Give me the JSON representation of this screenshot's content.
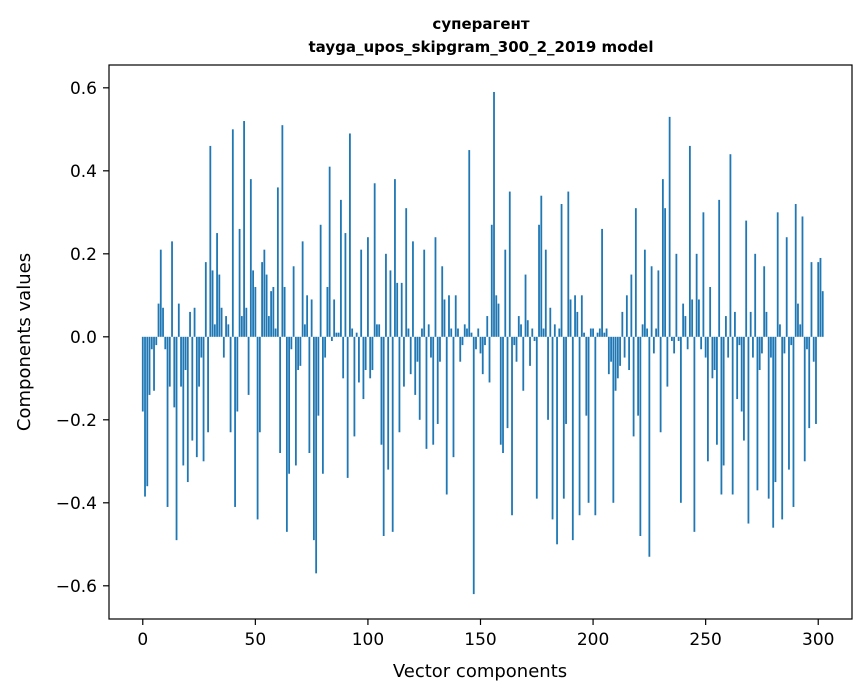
{
  "chart_data": {
    "type": "bar",
    "title": "суперагент",
    "subtitle": "tayga_upos_skipgram_300_2_2019 model",
    "xlabel": "Vector components",
    "ylabel": "Components values",
    "xlim": [
      -15,
      315
    ],
    "ylim": [
      -0.68,
      0.655
    ],
    "xticks": [
      0,
      50,
      100,
      150,
      200,
      250,
      300
    ],
    "xtick_labels": [
      "0",
      "50",
      "100",
      "150",
      "200",
      "250",
      "300"
    ],
    "yticks": [
      -0.6,
      -0.4,
      -0.2,
      0.0,
      0.2,
      0.4,
      0.6
    ],
    "ytick_labels": [
      "−0.6",
      "−0.4",
      "−0.2",
      "0.0",
      "0.2",
      "0.4",
      "0.6"
    ],
    "bar_color": "#1f77b4",
    "grid": false,
    "values": [
      -0.18,
      -0.385,
      -0.36,
      -0.14,
      -0.03,
      -0.13,
      -0.02,
      0.08,
      0.21,
      0.07,
      -0.03,
      -0.41,
      -0.12,
      0.23,
      -0.17,
      -0.49,
      0.08,
      -0.12,
      -0.31,
      -0.08,
      -0.35,
      0.06,
      -0.25,
      0.07,
      -0.29,
      -0.12,
      -0.05,
      -0.3,
      0.18,
      -0.23,
      0.46,
      0.16,
      0.03,
      0.25,
      0.15,
      0.07,
      -0.05,
      0.05,
      0.03,
      -0.23,
      0.5,
      -0.41,
      -0.18,
      0.26,
      0.05,
      0.52,
      0.07,
      -0.14,
      0.38,
      0.16,
      0.12,
      -0.44,
      -0.23,
      0.18,
      0.21,
      0.15,
      0.05,
      0.11,
      0.12,
      0.02,
      0.36,
      -0.28,
      0.51,
      0.12,
      -0.47,
      -0.33,
      -0.03,
      0.17,
      -0.31,
      -0.08,
      -0.07,
      0.23,
      0.03,
      0.1,
      -0.28,
      0.09,
      -0.49,
      -0.57,
      -0.19,
      0.27,
      -0.33,
      -0.05,
      0.12,
      0.41,
      -0.01,
      0.09,
      0.01,
      0.01,
      0.33,
      -0.1,
      0.25,
      -0.34,
      0.49,
      0.02,
      -0.24,
      0.01,
      -0.11,
      0.21,
      -0.15,
      -0.08,
      0.24,
      -0.1,
      -0.08,
      0.37,
      0.03,
      0.03,
      -0.26,
      -0.48,
      0.2,
      -0.32,
      0.16,
      -0.47,
      0.38,
      0.13,
      -0.23,
      0.13,
      -0.12,
      0.31,
      0.02,
      -0.09,
      0.23,
      -0.14,
      -0.06,
      -0.2,
      0.02,
      0.21,
      -0.27,
      0.03,
      -0.05,
      -0.26,
      0.24,
      -0.21,
      -0.06,
      0.17,
      0.09,
      -0.38,
      0.1,
      0.02,
      -0.29,
      0.1,
      0.02,
      -0.06,
      -0.02,
      0.03,
      0.02,
      0.45,
      0.01,
      -0.62,
      -0.03,
      0.02,
      -0.04,
      -0.09,
      -0.02,
      0.05,
      -0.11,
      0.27,
      0.59,
      0.1,
      0.08,
      -0.26,
      -0.28,
      0.21,
      -0.22,
      0.35,
      -0.43,
      -0.02,
      -0.06,
      0.05,
      0.03,
      -0.13,
      0.15,
      0.04,
      -0.07,
      0.02,
      -0.01,
      -0.39,
      0.27,
      0.34,
      0.02,
      0.21,
      -0.2,
      0.07,
      -0.44,
      0.03,
      -0.5,
      0.02,
      0.32,
      -0.39,
      -0.21,
      0.35,
      0.09,
      -0.49,
      0.1,
      0.06,
      -0.43,
      0.1,
      0.01,
      -0.19,
      -0.4,
      0.02,
      0.02,
      -0.43,
      0.01,
      0.02,
      0.26,
      0.01,
      0.02,
      -0.09,
      -0.06,
      -0.4,
      -0.13,
      -0.1,
      -0.07,
      0.06,
      -0.05,
      0.1,
      -0.08,
      0.15,
      -0.24,
      0.31,
      -0.19,
      -0.48,
      0.03,
      0.21,
      0.02,
      -0.53,
      0.17,
      -0.04,
      0.02,
      0.16,
      -0.23,
      0.38,
      0.31,
      -0.12,
      0.53,
      -0.01,
      -0.04,
      0.2,
      -0.01,
      -0.4,
      0.08,
      0.05,
      -0.03,
      0.46,
      0.09,
      -0.47,
      0.2,
      0.09,
      -0.03,
      0.3,
      -0.05,
      -0.3,
      0.12,
      -0.1,
      -0.08,
      -0.26,
      0.33,
      -0.38,
      -0.31,
      0.05,
      -0.05,
      0.44,
      -0.38,
      0.06,
      -0.15,
      -0.02,
      -0.18,
      -0.25,
      0.28,
      -0.45,
      0.06,
      -0.05,
      0.2,
      -0.37,
      -0.08,
      -0.04,
      0.17,
      0.06,
      -0.39,
      -0.05,
      -0.46,
      -0.35,
      0.3,
      0.03,
      -0.44,
      -0.04,
      0.24,
      -0.32,
      -0.02,
      -0.41,
      0.32,
      0.08,
      0.03,
      0.29,
      -0.3,
      -0.03,
      -0.22,
      0.18,
      -0.06,
      -0.21,
      0.18,
      0.19,
      0.11
    ]
  }
}
